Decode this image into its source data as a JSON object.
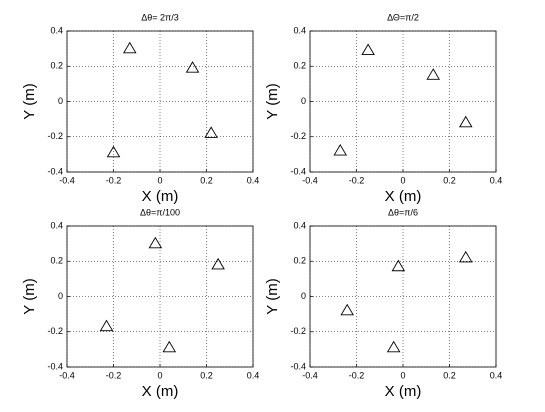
{
  "chart_data": [
    {
      "type": "scatter",
      "title": "Δθ= 2π/3",
      "xlabel": "X (m)",
      "ylabel": "Y (m)",
      "x": [
        -0.13,
        0.14,
        0.22,
        -0.2
      ],
      "y": [
        0.3,
        0.19,
        -0.18,
        -0.29
      ],
      "xlim": [
        -0.4,
        0.4
      ],
      "ylim": [
        -0.4,
        0.4
      ],
      "xticks": [
        -0.4,
        -0.2,
        0,
        0.2,
        0.4
      ],
      "yticks": [
        -0.4,
        -0.2,
        0,
        0.2,
        0.4
      ],
      "grid": true,
      "marker": "triangle",
      "color": "#000000"
    },
    {
      "type": "scatter",
      "title": "ΔΘ=π/2",
      "xlabel": "X (m)",
      "ylabel": "Y (m)",
      "x": [
        -0.15,
        0.13,
        0.27,
        -0.27
      ],
      "y": [
        0.29,
        0.15,
        -0.12,
        -0.28
      ],
      "xlim": [
        -0.4,
        0.4
      ],
      "ylim": [
        -0.4,
        0.4
      ],
      "xticks": [
        -0.4,
        -0.2,
        0,
        0.2,
        0.4
      ],
      "yticks": [
        -0.4,
        -0.2,
        0,
        0.2,
        0.4
      ],
      "grid": true,
      "marker": "triangle",
      "color": "#000000"
    },
    {
      "type": "scatter",
      "title": "Δθ=π/100",
      "xlabel": "X (m)",
      "ylabel": "Y (m)",
      "x": [
        -0.02,
        0.25,
        -0.23,
        0.04
      ],
      "y": [
        0.3,
        0.18,
        -0.17,
        -0.29
      ],
      "xlim": [
        -0.4,
        0.4
      ],
      "ylim": [
        -0.4,
        0.4
      ],
      "xticks": [
        -0.4,
        -0.2,
        0,
        0.2,
        0.4
      ],
      "yticks": [
        -0.4,
        -0.2,
        0,
        0.2,
        0.4
      ],
      "grid": true,
      "marker": "triangle",
      "color": "#000000"
    },
    {
      "type": "scatter",
      "title": "Δθ=π/6",
      "xlabel": "X (m)",
      "ylabel": "Y (m)",
      "x": [
        -0.02,
        0.27,
        -0.24,
        -0.04
      ],
      "y": [
        0.17,
        0.22,
        -0.08,
        -0.29
      ],
      "xlim": [
        -0.4,
        0.4
      ],
      "ylim": [
        -0.4,
        0.4
      ],
      "xticks": [
        -0.4,
        -0.2,
        0,
        0.2,
        0.4
      ],
      "yticks": [
        -0.4,
        -0.2,
        0,
        0.2,
        0.4
      ],
      "grid": true,
      "marker": "triangle",
      "color": "#000000"
    }
  ]
}
